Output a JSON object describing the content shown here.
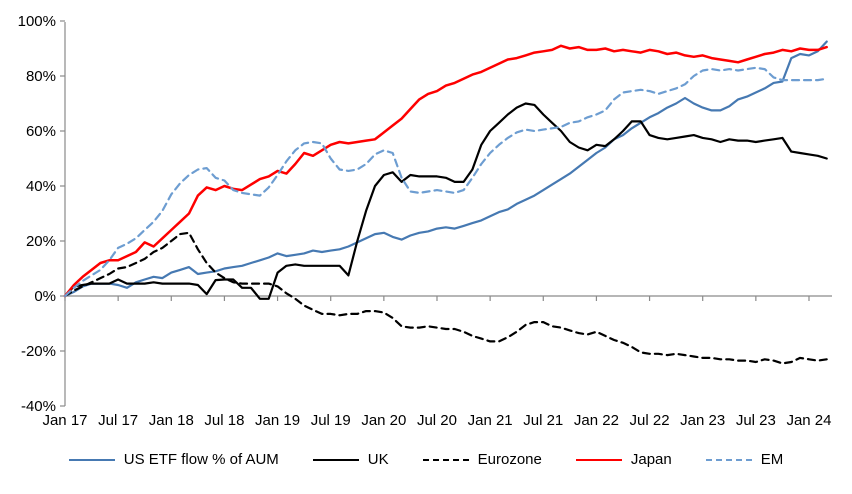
{
  "page": {
    "background": "#ffffff"
  },
  "chart_data": {
    "type": "line",
    "title": "",
    "grid": false,
    "legend_position": "bottom",
    "axis_color": "#8a8a8a",
    "frequency": "monthly",
    "period_start": "Jan 2017",
    "period_end": "Mar 2024",
    "x_axis": {
      "tick_labels": [
        "Jan 17",
        "Jul 17",
        "Jan 18",
        "Jul 18",
        "Jan 19",
        "Jul 19",
        "Jan 20",
        "Jul 20",
        "Jan 21",
        "Jul 21",
        "Jan 22",
        "Jul 22",
        "Jan 23",
        "Jul 23",
        "Jan 24"
      ],
      "tick_month_indices": [
        0,
        6,
        12,
        18,
        24,
        30,
        36,
        42,
        48,
        54,
        60,
        66,
        72,
        78,
        84
      ]
    },
    "y_axis": {
      "range": [
        -40,
        100
      ],
      "ticks": [
        {
          "label": "100%",
          "value": 100
        },
        {
          "label": "80%",
          "value": 80
        },
        {
          "label": "60%",
          "value": 60
        },
        {
          "label": "40%",
          "value": 40
        },
        {
          "label": "20%",
          "value": 20
        },
        {
          "label": "0%",
          "value": 0
        },
        {
          "label": "-20%",
          "value": -20
        },
        {
          "label": "-40%",
          "value": -40
        }
      ]
    },
    "series": [
      {
        "name": "US ETF flow % of AUM",
        "color": "#4679B2",
        "style": "solid",
        "values": [
          0,
          1.5,
          3.5,
          4.5,
          4.5,
          4.5,
          4,
          3,
          5,
          6,
          7,
          6.5,
          8.5,
          9.5,
          10.5,
          8,
          8.5,
          9,
          10,
          10.5,
          11,
          12,
          13,
          14,
          15.5,
          14.5,
          15,
          15.5,
          16.5,
          16,
          16.5,
          17,
          18,
          19.5,
          21,
          22.5,
          23,
          21.5,
          20.5,
          22,
          23,
          23.5,
          24.5,
          25,
          24.5,
          25.5,
          26.5,
          27.5,
          29,
          30.5,
          31.5,
          33.5,
          35,
          36.5,
          38.5,
          40.5,
          42.5,
          44.5,
          47,
          49.5,
          52,
          54,
          57,
          58.5,
          61,
          63,
          65,
          66.5,
          68.5,
          70,
          72,
          70,
          68.5,
          67.5,
          67.5,
          69,
          71.5,
          72.5,
          74,
          75.5,
          77.5,
          78,
          86.5,
          88,
          87.5,
          89,
          92.5
        ]
      },
      {
        "name": "UK",
        "color": "#000000",
        "style": "solid",
        "values": [
          0,
          3.5,
          4,
          4.5,
          4.5,
          4.5,
          6,
          4.5,
          4.5,
          4.5,
          5,
          4.5,
          4.5,
          4.5,
          4.5,
          4,
          0.7,
          5.8,
          6,
          6,
          3,
          3,
          -1,
          -1,
          8.5,
          11,
          11.5,
          11,
          11,
          11,
          11,
          11,
          7.5,
          20,
          31,
          40,
          44,
          45,
          41.5,
          44,
          43.5,
          43.5,
          43.5,
          43,
          41.5,
          41.5,
          46,
          55,
          60,
          63,
          66,
          68.5,
          70,
          69.5,
          66,
          63,
          60,
          56,
          54,
          53,
          55,
          54.5,
          57,
          60,
          63.5,
          63.5,
          58.5,
          57.5,
          57,
          57.5,
          58,
          58.5,
          57.5,
          57,
          56,
          57,
          56.5,
          56.5,
          56,
          56.5,
          57,
          57.5,
          52.5,
          52,
          51.5,
          51,
          50
        ]
      },
      {
        "name": "Eurozone",
        "color": "#000000",
        "style": "dashed",
        "values": [
          0,
          2,
          3.5,
          5,
          6.5,
          8,
          10,
          10.5,
          12,
          13.5,
          16,
          17.5,
          20,
          22.5,
          23,
          17,
          12,
          8.5,
          6.5,
          5,
          4.5,
          4.5,
          4.5,
          4.5,
          3.5,
          1,
          -1,
          -3.5,
          -5,
          -6.5,
          -6.5,
          -7,
          -6.5,
          -6.5,
          -5.5,
          -5.5,
          -6,
          -8,
          -11,
          -11.5,
          -11.5,
          -11,
          -11.5,
          -12,
          -12,
          -13,
          -14.5,
          -15.5,
          -16.5,
          -16.5,
          -15,
          -13,
          -10.5,
          -9.5,
          -9.5,
          -11,
          -11.5,
          -12.5,
          -13.5,
          -14,
          -13,
          -14.5,
          -16,
          -17,
          -18.5,
          -20.5,
          -21,
          -21,
          -21.5,
          -21,
          -21.5,
          -22,
          -22.5,
          -22.5,
          -23,
          -23,
          -23.5,
          -23.5,
          -24,
          -23,
          -23.5,
          -24.5,
          -24,
          -22.5,
          -23,
          -23.5,
          -23
        ]
      },
      {
        "name": "Japan",
        "color": "#FE0000",
        "style": "solid",
        "values": [
          0,
          4,
          7,
          9.5,
          12,
          13,
          13,
          14.5,
          16,
          19.5,
          18,
          21,
          24,
          27,
          30,
          36.5,
          39.5,
          38.5,
          40,
          39,
          38.5,
          40.5,
          42.5,
          43.5,
          45.5,
          44.5,
          48,
          52,
          51,
          53,
          55,
          56,
          55.5,
          56,
          56.5,
          57,
          59.5,
          62,
          64.5,
          68,
          71.5,
          73.5,
          74.5,
          76.5,
          77.5,
          79,
          80.5,
          81.5,
          83,
          84.5,
          86,
          86.5,
          87.5,
          88.5,
          89,
          89.5,
          91,
          90,
          90.5,
          89.5,
          89.5,
          90,
          89,
          89.5,
          89,
          88.5,
          89.5,
          89,
          88,
          88.5,
          87.5,
          87,
          87.5,
          86.5,
          86,
          85.5,
          85,
          86,
          87,
          88,
          88.5,
          89.5,
          89,
          90,
          89.5,
          89.5,
          90.5
        ]
      },
      {
        "name": "EM",
        "color": "#6D9DD1",
        "style": "dashed",
        "values": [
          0,
          3,
          5.5,
          7.5,
          9.5,
          13,
          17.5,
          19,
          21,
          24,
          27,
          31,
          37,
          41,
          44,
          46,
          46.5,
          43,
          42,
          38.5,
          37.5,
          37,
          36.5,
          39.5,
          44,
          49,
          53,
          55.5,
          56,
          55.5,
          50,
          46,
          45.5,
          46,
          48,
          51.5,
          53,
          52,
          43,
          38,
          37.5,
          38,
          38.5,
          38,
          37.5,
          38.5,
          43,
          48,
          52,
          55,
          57.5,
          59.5,
          60.5,
          60,
          60.5,
          61,
          61.5,
          63,
          63.5,
          65,
          66,
          67.5,
          71.5,
          74,
          74.5,
          75,
          74.5,
          73.5,
          74.5,
          75.5,
          77,
          80,
          82,
          82.5,
          82,
          82.5,
          82,
          82.5,
          83,
          82.5,
          79.5,
          78.5,
          78.5,
          78.5,
          78.5,
          78.5,
          79
        ]
      }
    ]
  }
}
